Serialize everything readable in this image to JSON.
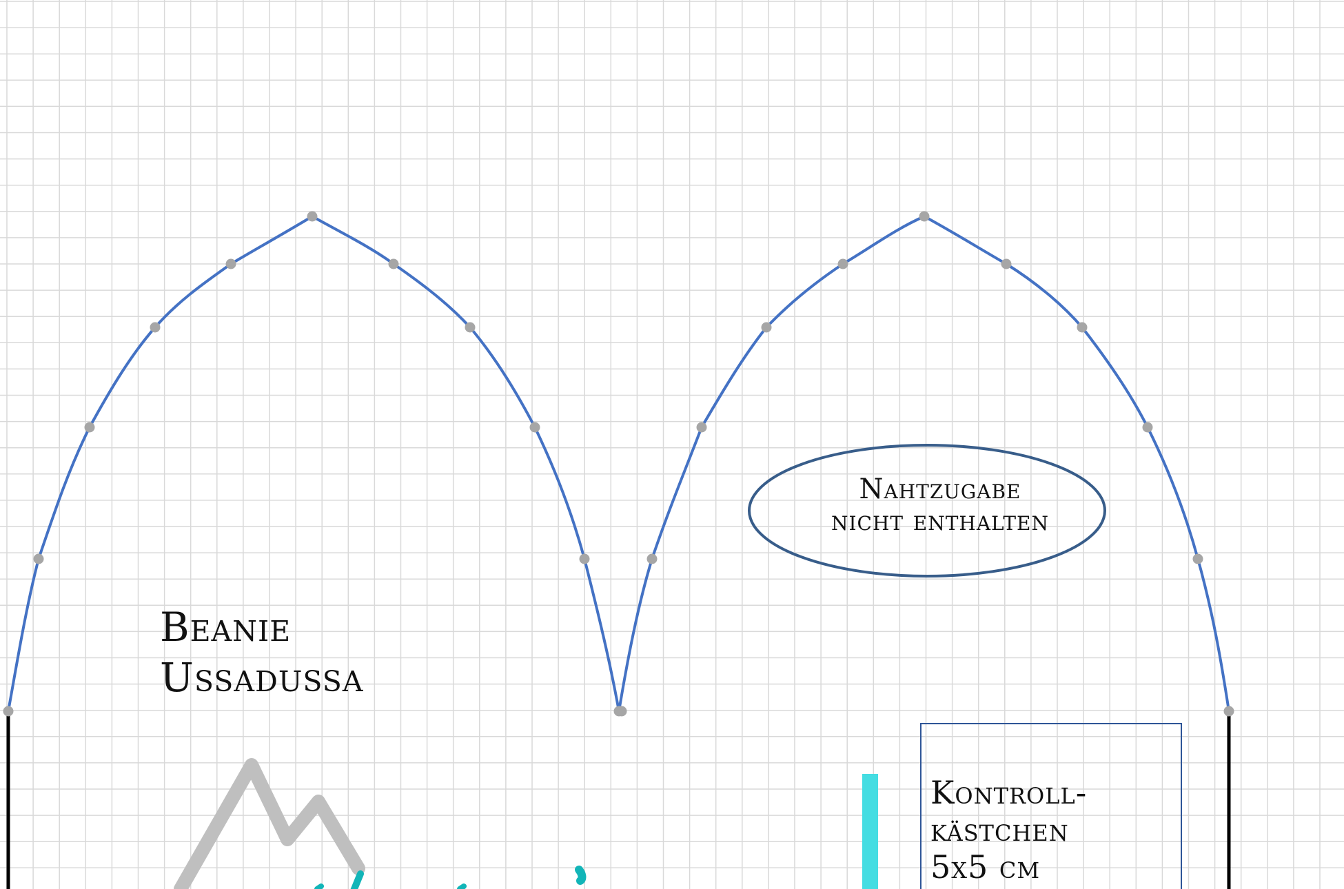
{
  "title": {
    "line1": "Beanie",
    "line2": "Ussadussa"
  },
  "note": {
    "line1": "Nahtzugabe",
    "line2": "nicht enthalten"
  },
  "control_box": {
    "line1": "Kontroll-",
    "line2": "kästchen",
    "line3": "5x5 cm"
  },
  "colors": {
    "pattern_line": "#4472c4",
    "points": "#a6a6a6",
    "grid": "#d9d9d9",
    "ellipse": "#385d8a",
    "control_box_border": "#2e5597",
    "accent_bar": "#44dde2",
    "logo_mountain": "#bfbfbf",
    "logo_script": "#12b5b8"
  }
}
